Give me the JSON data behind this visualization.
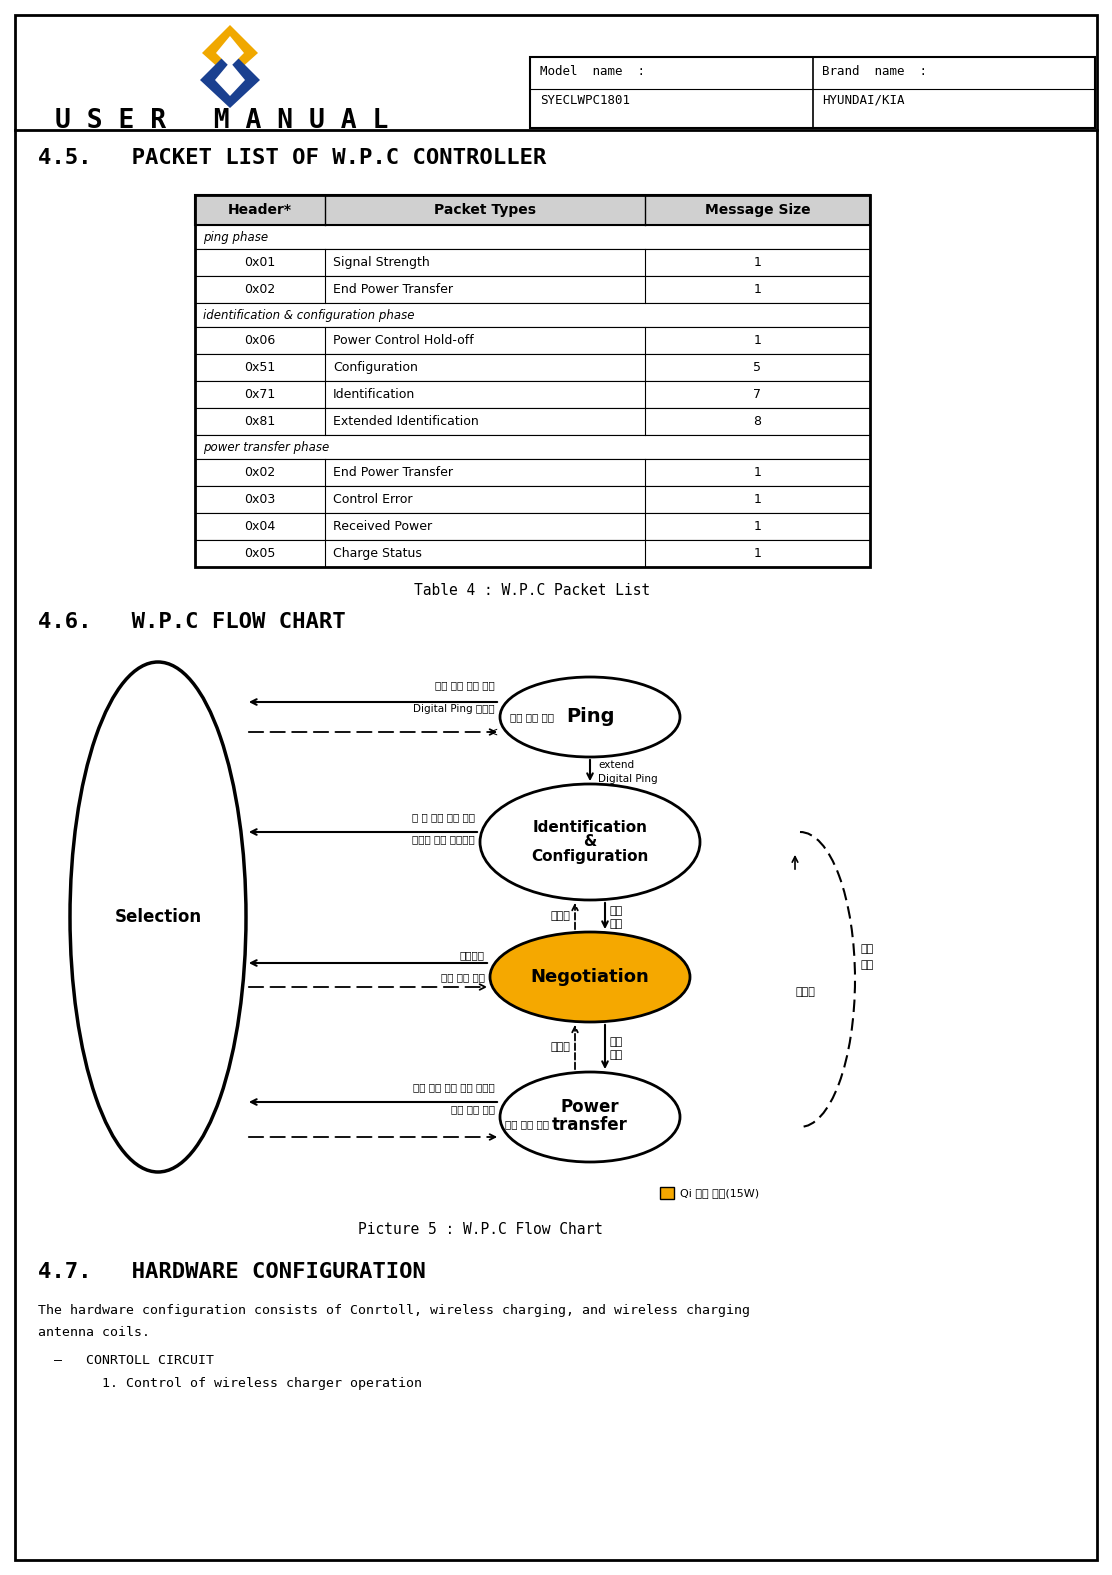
{
  "title_section": "4.5.   PACKET LIST OF W.P.C CONTROLLER",
  "table_caption": "Table 4 : W.P.C Packet List",
  "flowchart_title": "4.6.   W.P.C FLOW CHART",
  "flowchart_caption": "Picture 5 : W.P.C Flow Chart",
  "hardware_title": "4.7.   HARDWARE CONFIGURATION",
  "hardware_text1": "The hardware configuration consists of Conrtoll, wireless charging, and wireless charging",
  "hardware_text2": "antenna coils.",
  "hardware_bullet": "  –   CONRTOLL CIRCUIT",
  "hardware_sub": "        1. Control of wireless charger operation",
  "header_row": [
    "Header*",
    "Packet Types",
    "Message Size"
  ],
  "table_rows": [
    {
      "type": "section",
      "text": "ping phase"
    },
    {
      "type": "data",
      "col1": "0x01",
      "col2": "Signal Strength",
      "col3": "1"
    },
    {
      "type": "data",
      "col1": "0x02",
      "col2": "End Power Transfer",
      "col3": "1"
    },
    {
      "type": "section",
      "text": "identification & configuration phase"
    },
    {
      "type": "data",
      "col1": "0x06",
      "col2": "Power Control Hold-off",
      "col3": "1"
    },
    {
      "type": "data",
      "col1": "0x51",
      "col2": "Configuration",
      "col3": "5"
    },
    {
      "type": "data",
      "col1": "0x71",
      "col2": "Identification",
      "col3": "7"
    },
    {
      "type": "data",
      "col1": "0x81",
      "col2": "Extended Identification",
      "col3": "8"
    },
    {
      "type": "section",
      "text": "power transfer phase"
    },
    {
      "type": "data",
      "col1": "0x02",
      "col2": "End Power Transfer",
      "col3": "1"
    },
    {
      "type": "data",
      "col1": "0x03",
      "col2": "Control Error",
      "col3": "1"
    },
    {
      "type": "data",
      "col1": "0x04",
      "col2": "Received Power",
      "col3": "1"
    },
    {
      "type": "data",
      "col1": "0x05",
      "col2": "Charge Status",
      "col3": "1"
    }
  ],
  "model_name_label": "Model  name  :",
  "model_name_value": "SYECLWPC1801",
  "brand_name_label": "Brand  name  :",
  "brand_name_value": "HYUNDAI/KIA",
  "user_manual": "U S E R   M A N U A L",
  "bg_color": "#ffffff",
  "border_color": "#000000",
  "header_bg": "#d0d0d0",
  "logo_gold": "#f0a800",
  "logo_blue": "#1a4090",
  "negotiation_fill": "#f5a800",
  "section_text_color_ping": "#000080",
  "section_text_color_id": "#000080",
  "section_text_color_pt": "#000080"
}
